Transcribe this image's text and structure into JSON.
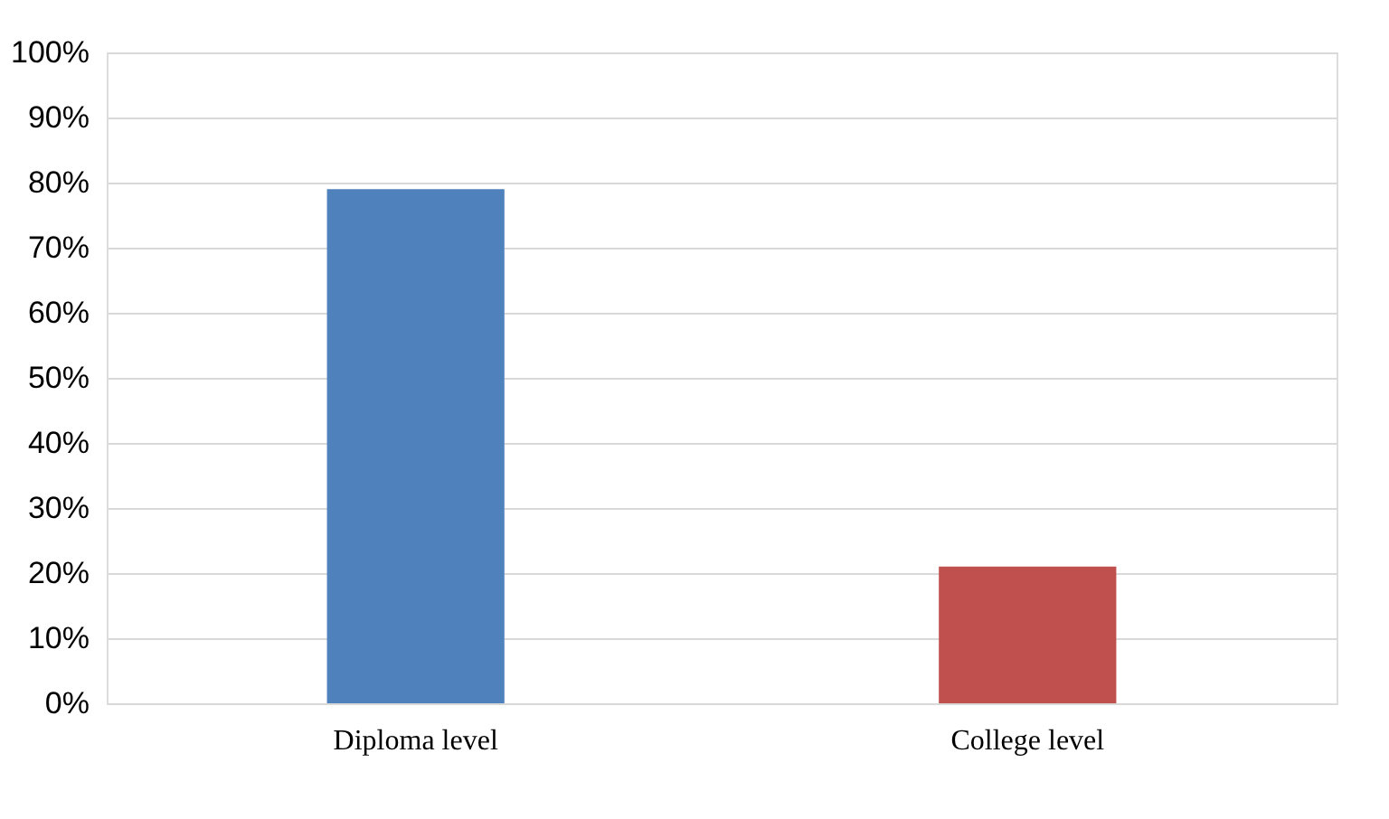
{
  "chart_data": {
    "type": "bar",
    "categories": [
      "Diploma level",
      "College level"
    ],
    "values": [
      79,
      21
    ],
    "colors": [
      "#4f81bd",
      "#c0504d"
    ],
    "ylim": [
      0,
      100
    ],
    "yticks": [
      {
        "value": 0,
        "label": "0%"
      },
      {
        "value": 10,
        "label": "10%"
      },
      {
        "value": 20,
        "label": "20%"
      },
      {
        "value": 30,
        "label": "30%"
      },
      {
        "value": 40,
        "label": "40%"
      },
      {
        "value": 50,
        "label": "50%"
      },
      {
        "value": 60,
        "label": "60%"
      },
      {
        "value": 70,
        "label": "70%"
      },
      {
        "value": 80,
        "label": "80%"
      },
      {
        "value": 90,
        "label": "90%"
      },
      {
        "value": 100,
        "label": "100%"
      }
    ],
    "grid": "y"
  }
}
